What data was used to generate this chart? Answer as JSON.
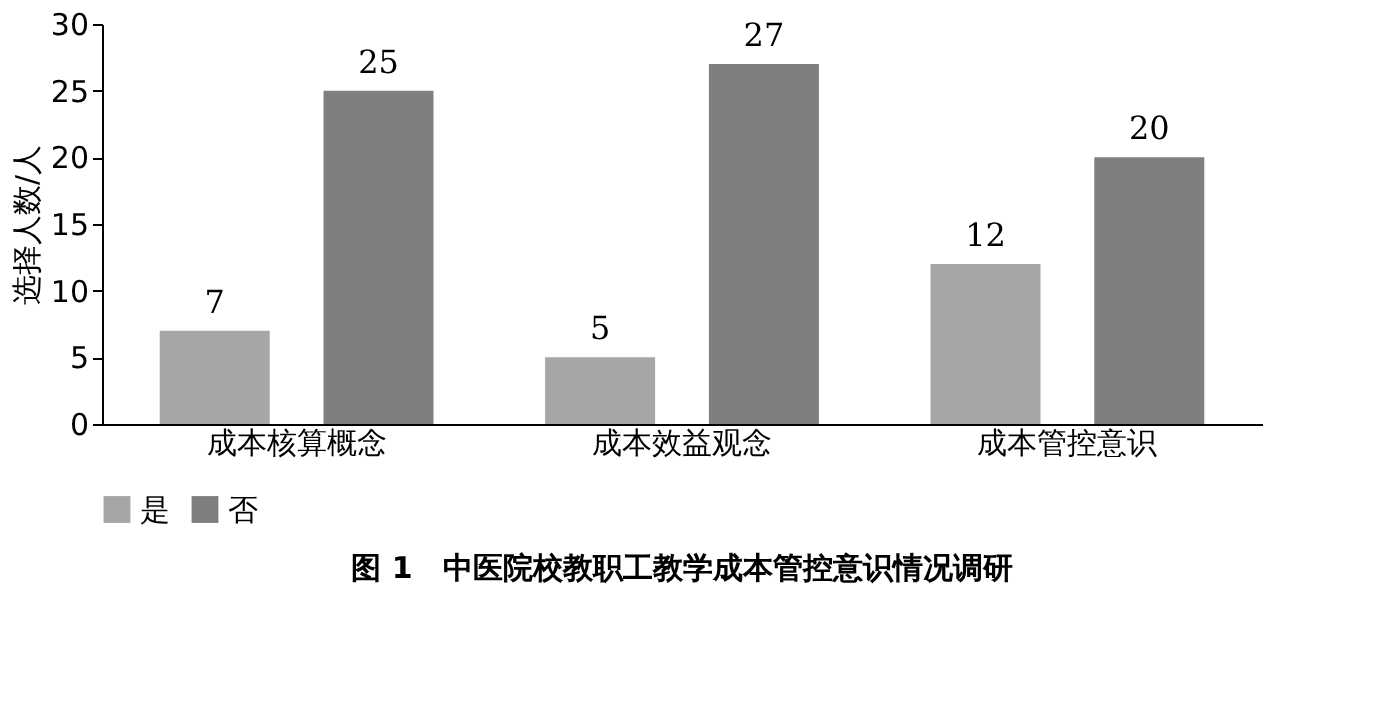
{
  "chart_data": {
    "type": "bar",
    "title": "图 1　中医院校教职工教学成本管控意识情况调研",
    "ylabel": "选择人数/人",
    "categories": [
      "成本核算概念",
      "成本效益观念",
      "成本管控意识"
    ],
    "series": [
      {
        "name": "是",
        "color": "#a6a6a6",
        "values": [
          7,
          5,
          12
        ]
      },
      {
        "name": "否",
        "color": "#7f7f7f",
        "values": [
          25,
          27,
          20
        ]
      }
    ],
    "ylim": [
      0,
      30
    ],
    "yticks": [
      0,
      5,
      10,
      15,
      20,
      25,
      30
    ],
    "data_labels": true,
    "grid": false,
    "legend": "bottom"
  }
}
